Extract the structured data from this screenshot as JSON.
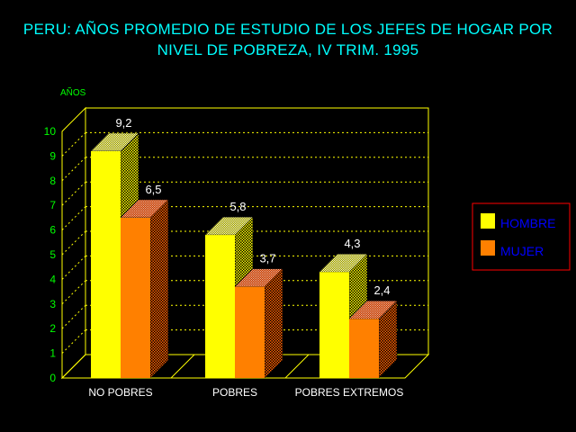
{
  "colors": {
    "background": "#000000",
    "title": "#00ffff",
    "frame": "#ffff00",
    "gridline": "#ffff00",
    "axis_text": "#00ff00",
    "category_text": "#ffffff",
    "legend_border": "#ff0000",
    "legend_text": "#0000ff"
  },
  "chart_data": {
    "type": "bar",
    "title": "PERU: AÑOS PROMEDIO DE ESTUDIO DE LOS JEFES DE HOGAR POR",
    "subtitle": "NIVEL DE POBREZA, IV TRIM. 1995",
    "ylabel": "AÑOS",
    "xlabel": "",
    "ylim": [
      0,
      10
    ],
    "yticks": [
      "0",
      "1",
      "2",
      "3",
      "4",
      "5",
      "6",
      "7",
      "8",
      "9",
      "10"
    ],
    "grid": true,
    "three_d": true,
    "legend_position": "right",
    "categories": [
      "NO POBRES",
      "POBRES",
      "POBRES EXTREMOS"
    ],
    "series": [
      {
        "name": "HOMBRE",
        "color": "#ffff00",
        "values": [
          9.2,
          5.8,
          4.3
        ],
        "labels": [
          "9,2",
          "5,8",
          "4,3"
        ]
      },
      {
        "name": "MUJER",
        "color": "#ff8000",
        "values": [
          6.5,
          3.7,
          2.4
        ],
        "labels": [
          "6,5",
          "3,7",
          "2,4"
        ]
      }
    ]
  }
}
